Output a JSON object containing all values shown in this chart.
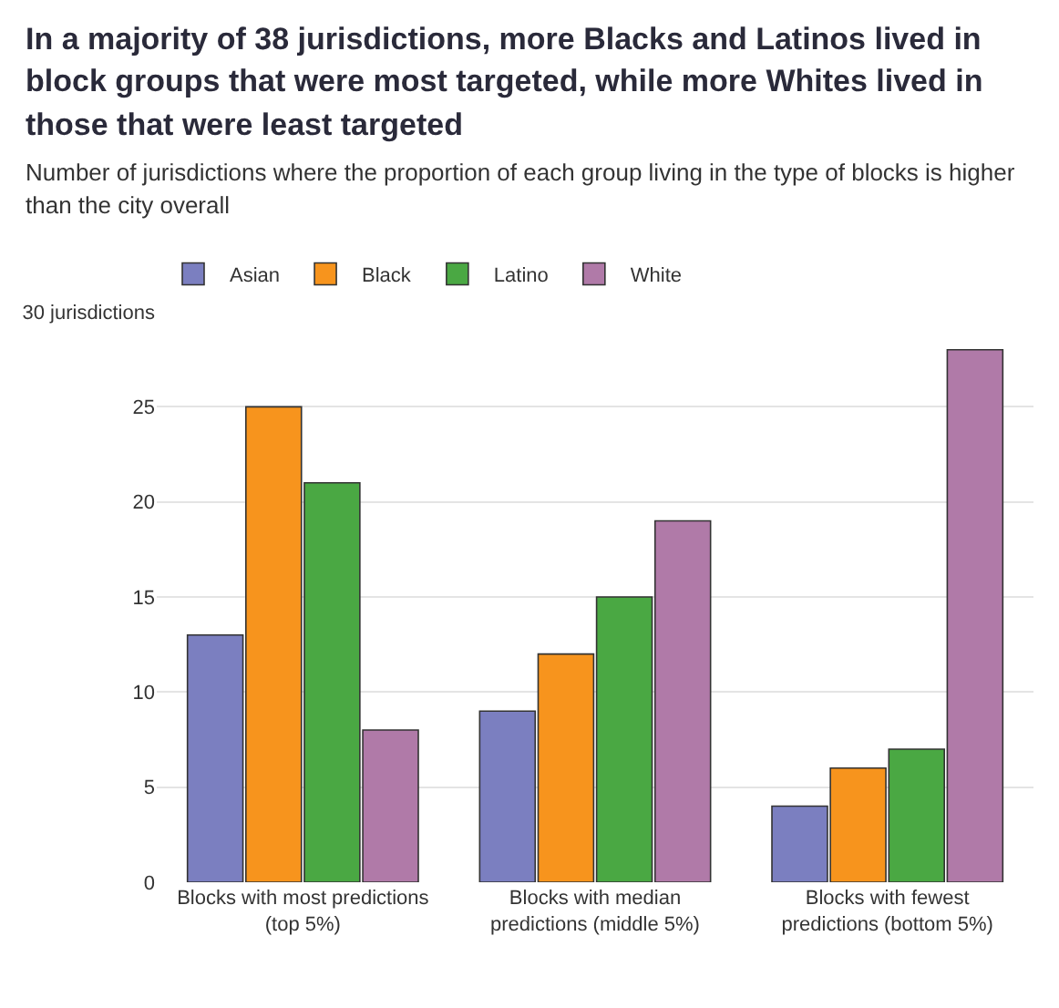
{
  "chart_data": {
    "type": "bar",
    "title": "In a majority of 38 jurisdictions, more Blacks and Latinos lived in block groups that were most targeted, while more Whites lived in those that were least targeted",
    "subtitle": "Number of jurisdictions where the proportion of each group living in the type of blocks is higher than the city overall",
    "categories": [
      "Blocks with most predictions (top 5%)",
      "Blocks with median predictions (middle 5%)",
      "Blocks with fewest predictions (bottom 5%)"
    ],
    "series": [
      {
        "name": "Asian",
        "color": "#7b7fc0",
        "values": [
          13,
          9,
          4
        ]
      },
      {
        "name": "Black",
        "color": "#f7941d",
        "values": [
          25,
          12,
          6
        ]
      },
      {
        "name": "Latino",
        "color": "#4aa843",
        "values": [
          21,
          15,
          7
        ]
      },
      {
        "name": "White",
        "color": "#b07aa8",
        "values": [
          8,
          19,
          28
        ]
      }
    ],
    "ylim": [
      0,
      30
    ],
    "yticks": [
      0,
      5,
      10,
      15,
      20,
      25,
      {
        "value": 30,
        "label": "30 jurisdictions"
      }
    ],
    "grid": "y",
    "legend": "top left"
  }
}
